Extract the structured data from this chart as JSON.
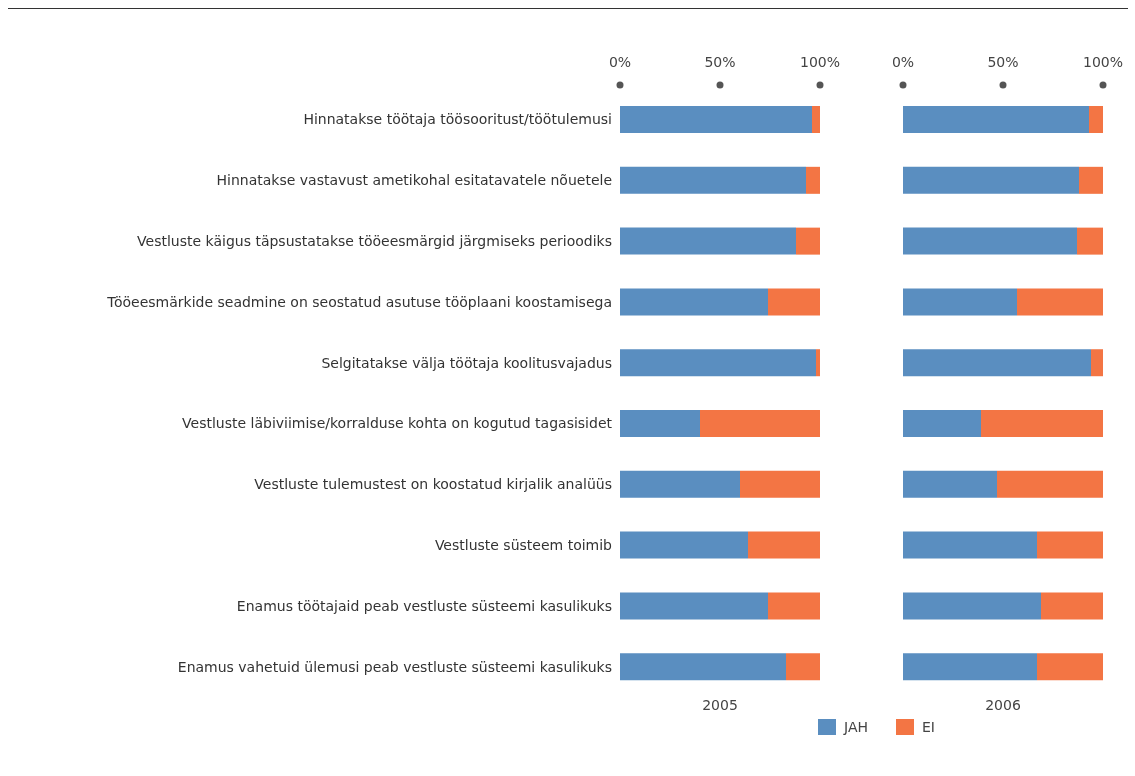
{
  "chart_data": [
    {
      "type": "bar",
      "orientation": "horizontal",
      "stacked": true,
      "xlabel": "2005",
      "categories": [
        "Hinnatakse töötaja töösooritust/töötulemusi",
        "Hinnatakse vastavust ametikohal esitatavatele nõuetele",
        "Vestluste käigus täpsustatakse tööeesmärgid järgmiseks perioodiks",
        "Tööeesmärkide seadmine on seostatud asutuse tööplaani koostamisega",
        "Selgitatakse välja töötaja koolitusvajadus",
        "Vestluste läbiviimise/korralduse kohta on kogutud tagasisidet",
        "Vestluste tulemustest on koostatud kirjalik analüüs",
        "Vestluste süsteem toimib",
        "Enamus töötajaid peab vestluste süsteemi kasulikuks",
        "Enamus vahetuid ülemusi peab vestluste süsteemi kasulikuks"
      ],
      "series": [
        {
          "name": "JAH",
          "color": "#5a8ec0",
          "values": [
            96,
            93,
            88,
            74,
            98,
            40,
            60,
            64,
            74,
            83
          ]
        },
        {
          "name": "EI",
          "color": "#f37544",
          "values": [
            4,
            7,
            12,
            26,
            2,
            60,
            40,
            36,
            26,
            17
          ]
        }
      ],
      "xlim": [
        0,
        100
      ],
      "xticks": [
        {
          "value": 0,
          "label": "0%"
        },
        {
          "value": 50,
          "label": "50%"
        },
        {
          "value": 100,
          "label": "100%"
        }
      ],
      "grid": false,
      "legend": "bottom"
    },
    {
      "type": "bar",
      "orientation": "horizontal",
      "stacked": true,
      "xlabel": "2006",
      "categories": [
        null,
        null,
        null,
        null,
        null,
        null,
        null,
        null,
        null,
        null
      ],
      "series": [
        {
          "color": "#5a8ec0",
          "values": [
            93,
            88,
            87,
            57,
            94,
            39,
            47,
            67,
            69,
            67
          ]
        },
        {
          "color": "#f37544",
          "values": [
            7,
            12,
            13,
            43,
            6,
            61,
            53,
            33,
            31,
            33
          ]
        }
      ],
      "xlim": [
        0,
        100
      ],
      "xticks": [
        {
          "value": 0,
          "label": "0%"
        },
        {
          "value": 50,
          "label": "50%"
        },
        {
          "value": 100,
          "label": "100%"
        }
      ],
      "grid": false,
      "tick_labels": "x"
    }
  ]
}
